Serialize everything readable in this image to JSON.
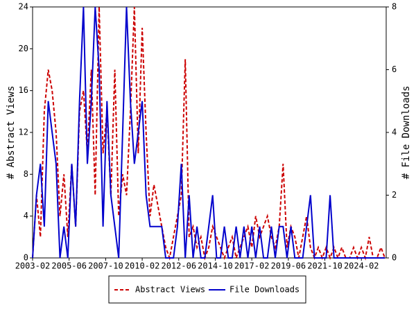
{
  "chart_data": {
    "type": "line",
    "y_label": "# Abstract Views",
    "y2_label": "# File Downloads",
    "x": [
      "2003-02",
      "2003-05",
      "2003-08",
      "2003-11",
      "2004-02",
      "2004-05",
      "2004-08",
      "2004-11",
      "2005-02",
      "2005-05",
      "2005-08",
      "2005-11",
      "2006-02",
      "2006-05",
      "2006-08",
      "2006-11",
      "2007-02",
      "2007-05",
      "2007-08",
      "2007-11",
      "2008-02",
      "2008-05",
      "2008-08",
      "2008-11",
      "2009-02",
      "2009-05",
      "2009-08",
      "2009-11",
      "2010-02",
      "2010-05",
      "2010-08",
      "2010-11",
      "2011-02",
      "2011-05",
      "2011-08",
      "2011-11",
      "2012-02",
      "2012-05",
      "2012-08",
      "2012-11",
      "2013-02",
      "2013-05",
      "2013-08",
      "2013-11",
      "2014-02",
      "2014-05",
      "2014-08",
      "2014-11",
      "2015-02",
      "2015-05",
      "2015-08",
      "2015-11",
      "2016-02",
      "2016-05",
      "2016-08",
      "2016-11",
      "2017-02",
      "2017-05",
      "2017-08",
      "2017-11",
      "2018-02",
      "2018-05",
      "2018-08",
      "2018-11",
      "2019-02",
      "2019-05",
      "2019-08",
      "2019-11",
      "2020-02",
      "2020-05",
      "2020-08",
      "2020-11",
      "2021-02",
      "2021-05",
      "2021-08",
      "2021-11",
      "2022-02",
      "2022-05",
      "2022-08",
      "2022-11",
      "2023-02",
      "2023-05",
      "2023-08",
      "2023-11",
      "2024-02",
      "2024-05",
      "2024-08",
      "2024-11",
      "2025-02",
      "2025-05",
      "2025-08"
    ],
    "series": [
      {
        "name": "Abstract Views",
        "color": "#cc0000",
        "dash": true,
        "values": [
          0,
          6,
          2,
          14,
          18,
          16,
          12,
          4,
          8,
          2,
          9,
          3,
          14,
          16,
          10,
          18,
          6,
          24,
          10,
          14,
          6,
          18,
          4,
          8,
          6,
          14,
          24,
          10,
          22,
          12,
          4,
          7,
          5,
          3,
          1,
          0,
          2,
          4,
          6,
          19,
          2,
          3,
          1,
          2,
          0,
          1,
          3,
          2,
          1,
          0,
          1,
          2,
          0,
          1,
          2,
          3,
          1,
          4,
          2,
          3,
          4,
          2,
          1,
          3,
          9,
          1,
          3,
          2,
          0,
          2,
          4,
          1,
          0,
          1,
          0,
          1,
          0,
          1,
          0,
          1,
          0,
          0,
          1,
          0,
          1,
          0,
          2,
          0,
          0,
          1,
          0
        ]
      },
      {
        "name": "File Downloads",
        "color": "#0000cc",
        "axis": "y2",
        "values": [
          0,
          2,
          3,
          1,
          5,
          4,
          3,
          0,
          1,
          0,
          3,
          1,
          5,
          8,
          3,
          5,
          8,
          6,
          1,
          5,
          2,
          1,
          0,
          4,
          8,
          5,
          3,
          4,
          5,
          2,
          1,
          1,
          1,
          1,
          0,
          0,
          0,
          1,
          3,
          0,
          2,
          0,
          1,
          0,
          0,
          1,
          2,
          0,
          0,
          1,
          0,
          0,
          1,
          0,
          1,
          0,
          1,
          0,
          1,
          0,
          0,
          1,
          0,
          1,
          1,
          0,
          1,
          0,
          0,
          0,
          1,
          2,
          0,
          0,
          0,
          0,
          2,
          0,
          0,
          0,
          0,
          0,
          0,
          0,
          0,
          0,
          0,
          0,
          0,
          0,
          0
        ]
      }
    ],
    "xlim": [
      "2003-02",
      "2025-09"
    ],
    "xticks": [
      "2003-02",
      "2005-06",
      "2007-10",
      "2010-02",
      "2012-06",
      "2014-10",
      "2017-02",
      "2019-06",
      "2021-10",
      "2024-02"
    ],
    "ylim": [
      0,
      24
    ],
    "yticks": [
      0,
      4,
      8,
      12,
      16,
      20,
      24
    ],
    "y2lim": [
      0,
      8
    ],
    "y2ticks": [
      0,
      2,
      4,
      6,
      8
    ],
    "legend": "bottom"
  }
}
